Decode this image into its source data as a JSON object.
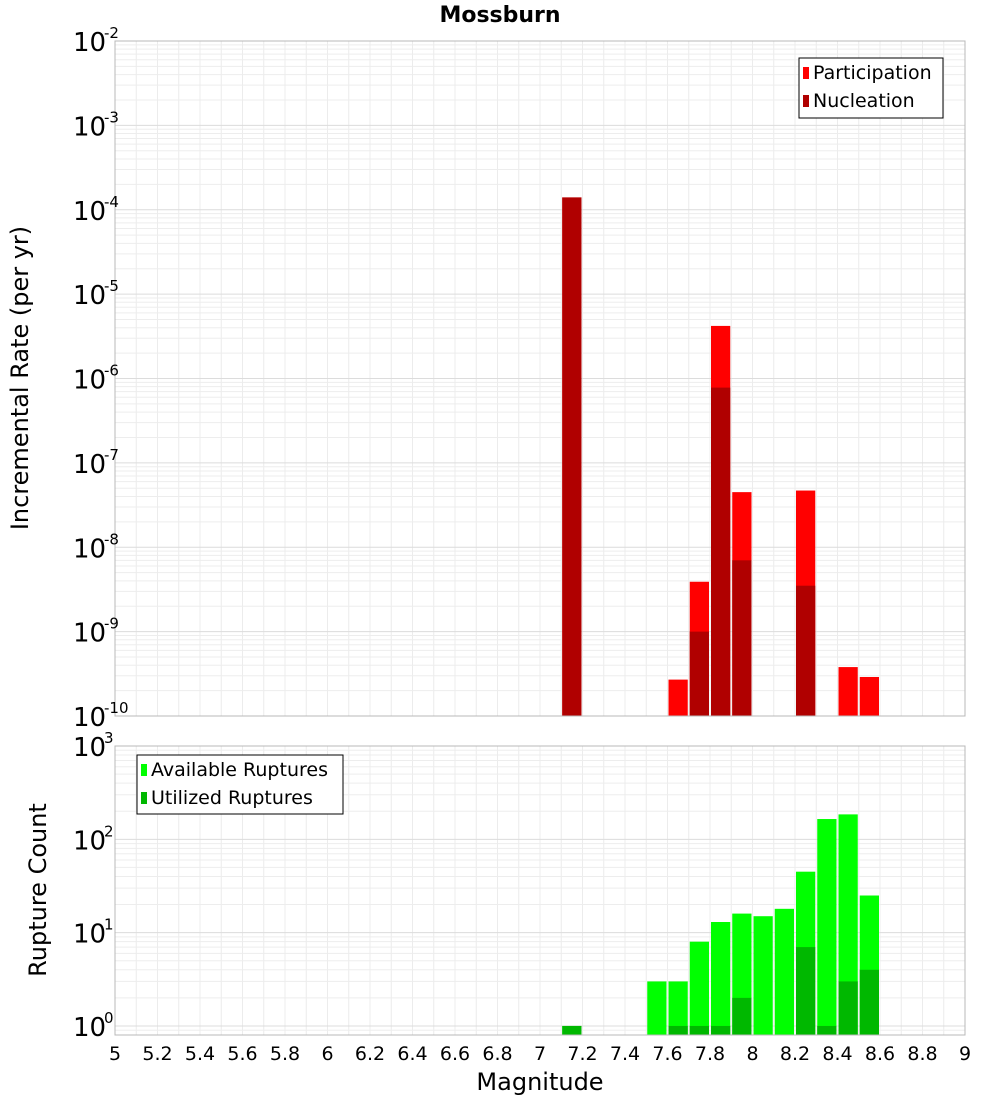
{
  "chart_data": {
    "title": "Mossburn",
    "xlabel": "Magnitude",
    "x_ticks": [
      "5",
      "5.2",
      "5.4",
      "5.6",
      "5.8",
      "6",
      "6.2",
      "6.4",
      "6.6",
      "6.8",
      "7",
      "7.2",
      "7.4",
      "7.6",
      "7.8",
      "8",
      "8.2",
      "8.4",
      "8.6",
      "8.8",
      "9"
    ],
    "xlim": [
      5,
      9
    ],
    "bin_width": 0.1,
    "panels": [
      {
        "type": "bar",
        "ylabel": "Incremental Rate (per yr)",
        "y_scale": "log",
        "ylim": [
          1e-10,
          0.01
        ],
        "y_ticks": [
          {
            "base": "10",
            "exp": "-10",
            "value": 1e-10
          },
          {
            "base": "10",
            "exp": "-9",
            "value": 1e-09
          },
          {
            "base": "10",
            "exp": "-8",
            "value": 1e-08
          },
          {
            "base": "10",
            "exp": "-7",
            "value": 1e-07
          },
          {
            "base": "10",
            "exp": "-6",
            "value": 1e-06
          },
          {
            "base": "10",
            "exp": "-5",
            "value": 1e-05
          },
          {
            "base": "10",
            "exp": "-4",
            "value": 0.0001
          },
          {
            "base": "10",
            "exp": "-3",
            "value": 0.001
          },
          {
            "base": "10",
            "exp": "-2",
            "value": 0.01
          }
        ],
        "legend_position": "top-right",
        "series": [
          {
            "name": "Participation",
            "color": "#ff0000",
            "x": [
              7.15,
              7.65,
              7.75,
              7.85,
              7.95,
              8.25,
              8.45,
              8.55
            ],
            "values": [
              0.00014,
              2.7e-10,
              3.9e-09,
              4.2e-06,
              4.5e-08,
              4.7e-08,
              3.8e-10,
              2.9e-10
            ]
          },
          {
            "name": "Nucleation",
            "color": "#b00000",
            "x": [
              7.15,
              7.75,
              7.85,
              7.95,
              8.25
            ],
            "values": [
              0.00014,
              1e-09,
              7.8e-07,
              7e-09,
              3.5e-09
            ]
          }
        ]
      },
      {
        "type": "bar",
        "ylabel": "Rupture Count",
        "y_scale": "log",
        "ylim": [
          0.8,
          1000
        ],
        "y_ticks": [
          {
            "base": "10",
            "exp": "0",
            "value": 1
          },
          {
            "base": "10",
            "exp": "1",
            "value": 10
          },
          {
            "base": "10",
            "exp": "2",
            "value": 100
          },
          {
            "base": "10",
            "exp": "3",
            "value": 1000
          }
        ],
        "legend_position": "top-left",
        "series": [
          {
            "name": "Available Ruptures",
            "color": "#00ff00",
            "x": [
              7.15,
              7.55,
              7.65,
              7.75,
              7.85,
              7.95,
              8.05,
              8.15,
              8.25,
              8.35,
              8.45,
              8.55
            ],
            "values": [
              1,
              3,
              3,
              8,
              13,
              16,
              15,
              18,
              45,
              165,
              185,
              25
            ]
          },
          {
            "name": "Utilized Ruptures",
            "color": "#00b800",
            "x": [
              7.15,
              7.65,
              7.75,
              7.85,
              7.95,
              8.25,
              8.35,
              8.45,
              8.55
            ],
            "values": [
              1,
              1,
              1,
              1,
              2,
              7,
              1,
              3,
              4
            ]
          }
        ]
      }
    ]
  }
}
